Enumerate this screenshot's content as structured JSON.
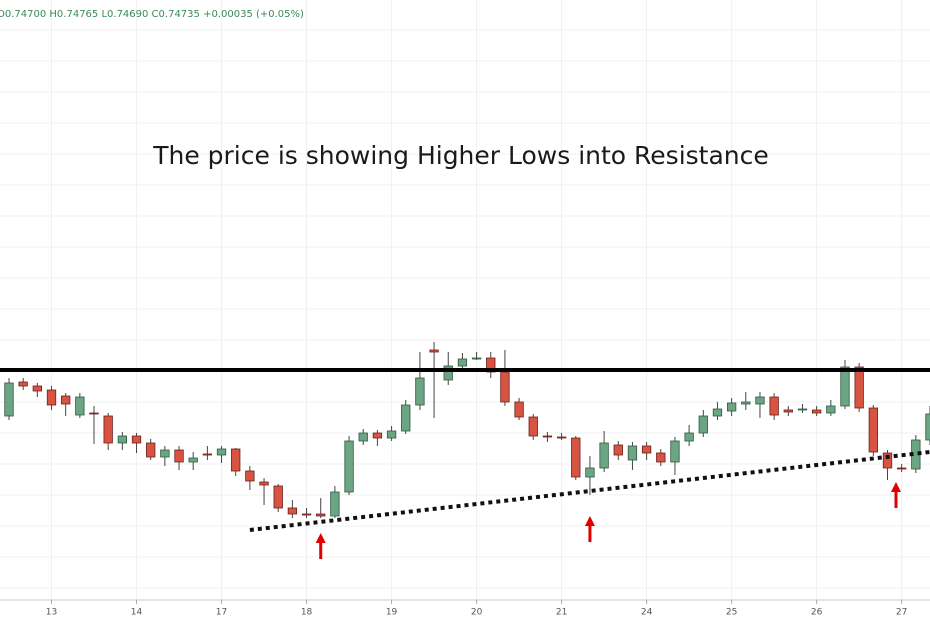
{
  "chart_data": {
    "type": "candlestick",
    "header": "O0.74700 H0.74765 L0.74690 C0.74735 +0.00035 (+0.05%)",
    "title": "The price is showing Higher Lows into Resistance",
    "up_color": "#6ba583",
    "down_color": "#d75442",
    "open": [
      0.74954,
      0.74988,
      0.74984,
      0.7498,
      0.74974,
      0.74955,
      0.74957,
      0.74954,
      0.74927,
      0.74934,
      0.74927,
      0.74913,
      0.7492,
      0.74908,
      0.74916,
      0.74915,
      0.74921,
      0.74899,
      0.74888,
      0.74884,
      0.74862,
      0.74856,
      0.74856,
      0.74854,
      0.74878,
      0.74929,
      0.74937,
      0.74932,
      0.74939,
      0.74965,
      0.7502,
      0.7499,
      0.75004,
      0.75011,
      0.75012,
      0.74998,
      0.74968,
      0.74953,
      0.74934,
      0.74933,
      0.74932,
      0.74893,
      0.74902,
      0.74925,
      0.7491,
      0.74924,
      0.74917,
      0.74908,
      0.74929,
      0.74937,
      0.74954,
      0.74959,
      0.74966,
      0.74966,
      0.74973,
      0.7496,
      0.7496,
      0.7496,
      0.74957,
      0.74964,
      0.75003,
      0.74962,
      0.74917,
      0.74902,
      0.74901,
      0.7493
    ],
    "high": [
      0.74992,
      0.74992,
      0.74987,
      0.74984,
      0.74977,
      0.74977,
      0.74964,
      0.74957,
      0.74938,
      0.74937,
      0.74931,
      0.74924,
      0.74924,
      0.74918,
      0.74924,
      0.74924,
      0.74922,
      0.74904,
      0.74892,
      0.74886,
      0.7487,
      0.74862,
      0.74872,
      0.74884,
      0.74934,
      0.74941,
      0.7494,
      0.74944,
      0.7497,
      0.75018,
      0.75028,
      0.75018,
      0.75017,
      0.75018,
      0.75018,
      0.7502,
      0.74972,
      0.74956,
      0.74938,
      0.74937,
      0.74934,
      0.74914,
      0.74939,
      0.74929,
      0.74928,
      0.74928,
      0.74921,
      0.74933,
      0.74945,
      0.7496,
      0.74968,
      0.74972,
      0.74978,
      0.74978,
      0.74977,
      0.74964,
      0.74966,
      0.74964,
      0.7497,
      0.7501,
      0.75007,
      0.74965,
      0.7492,
      0.74906,
      0.74935,
      0.74964
    ],
    "low": [
      0.7495,
      0.7498,
      0.74973,
      0.7496,
      0.74954,
      0.74952,
      0.74926,
      0.7492,
      0.7492,
      0.74917,
      0.7491,
      0.74904,
      0.749,
      0.749,
      0.7491,
      0.74907,
      0.74894,
      0.7488,
      0.74865,
      0.74858,
      0.74852,
      0.74852,
      0.74852,
      0.74852,
      0.74875,
      0.74925,
      0.74924,
      0.74929,
      0.74936,
      0.7496,
      0.74952,
      0.74985,
      0.75,
      0.7501,
      0.74992,
      0.74964,
      0.7495,
      0.7493,
      0.74928,
      0.7493,
      0.7489,
      0.74875,
      0.74898,
      0.7491,
      0.749,
      0.7491,
      0.74904,
      0.74895,
      0.74924,
      0.74933,
      0.7495,
      0.74954,
      0.7496,
      0.74952,
      0.7495,
      0.74954,
      0.74957,
      0.74954,
      0.74954,
      0.74961,
      0.74958,
      0.74914,
      0.7489,
      0.74898,
      0.74897,
      0.74925
    ],
    "close": [
      0.74987,
      0.74984,
      0.74979,
      0.74965,
      0.74966,
      0.74973,
      0.74956,
      0.74927,
      0.74934,
      0.74927,
      0.74913,
      0.7492,
      0.74908,
      0.74912,
      0.74915,
      0.74921,
      0.74899,
      0.74889,
      0.74885,
      0.74862,
      0.74856,
      0.74855,
      0.74854,
      0.74878,
      0.74929,
      0.74937,
      0.74932,
      0.74939,
      0.74965,
      0.74992,
      0.75018,
      0.75004,
      0.75011,
      0.75012,
      0.74998,
      0.74968,
      0.74953,
      0.74934,
      0.74933,
      0.74932,
      0.74893,
      0.74902,
      0.74927,
      0.74915,
      0.74924,
      0.74917,
      0.74908,
      0.74929,
      0.74937,
      0.74954,
      0.74961,
      0.74967,
      0.74968,
      0.74973,
      0.74955,
      0.74958,
      0.74961,
      0.74957,
      0.74964,
      0.75003,
      0.74962,
      0.74918,
      0.74902,
      0.74901,
      0.7493,
      0.74956
    ],
    "xlim": [
      -0.635,
      65
    ],
    "ylim": [
      0.7477,
      0.7537
    ],
    "xticks": [
      {
        "value": 3,
        "label": "13"
      },
      {
        "value": 9,
        "label": "14"
      },
      {
        "value": 15,
        "label": "17"
      },
      {
        "value": 21,
        "label": "18"
      },
      {
        "value": 27,
        "label": "19"
      },
      {
        "value": 33,
        "label": "20"
      },
      {
        "value": 39,
        "label": "21"
      },
      {
        "value": 45,
        "label": "24"
      },
      {
        "value": 51,
        "label": "25"
      },
      {
        "value": 57,
        "label": "26"
      },
      {
        "value": 63,
        "label": "27"
      }
    ],
    "resistance": 0.75,
    "support_line": {
      "x": [
        17,
        65
      ],
      "y": [
        0.7484,
        0.74918
      ]
    },
    "arrows": [
      {
        "x": 22,
        "y": 0.74837
      },
      {
        "x": 41,
        "y": 0.74854
      },
      {
        "x": 62.6,
        "y": 0.74888
      }
    ]
  }
}
